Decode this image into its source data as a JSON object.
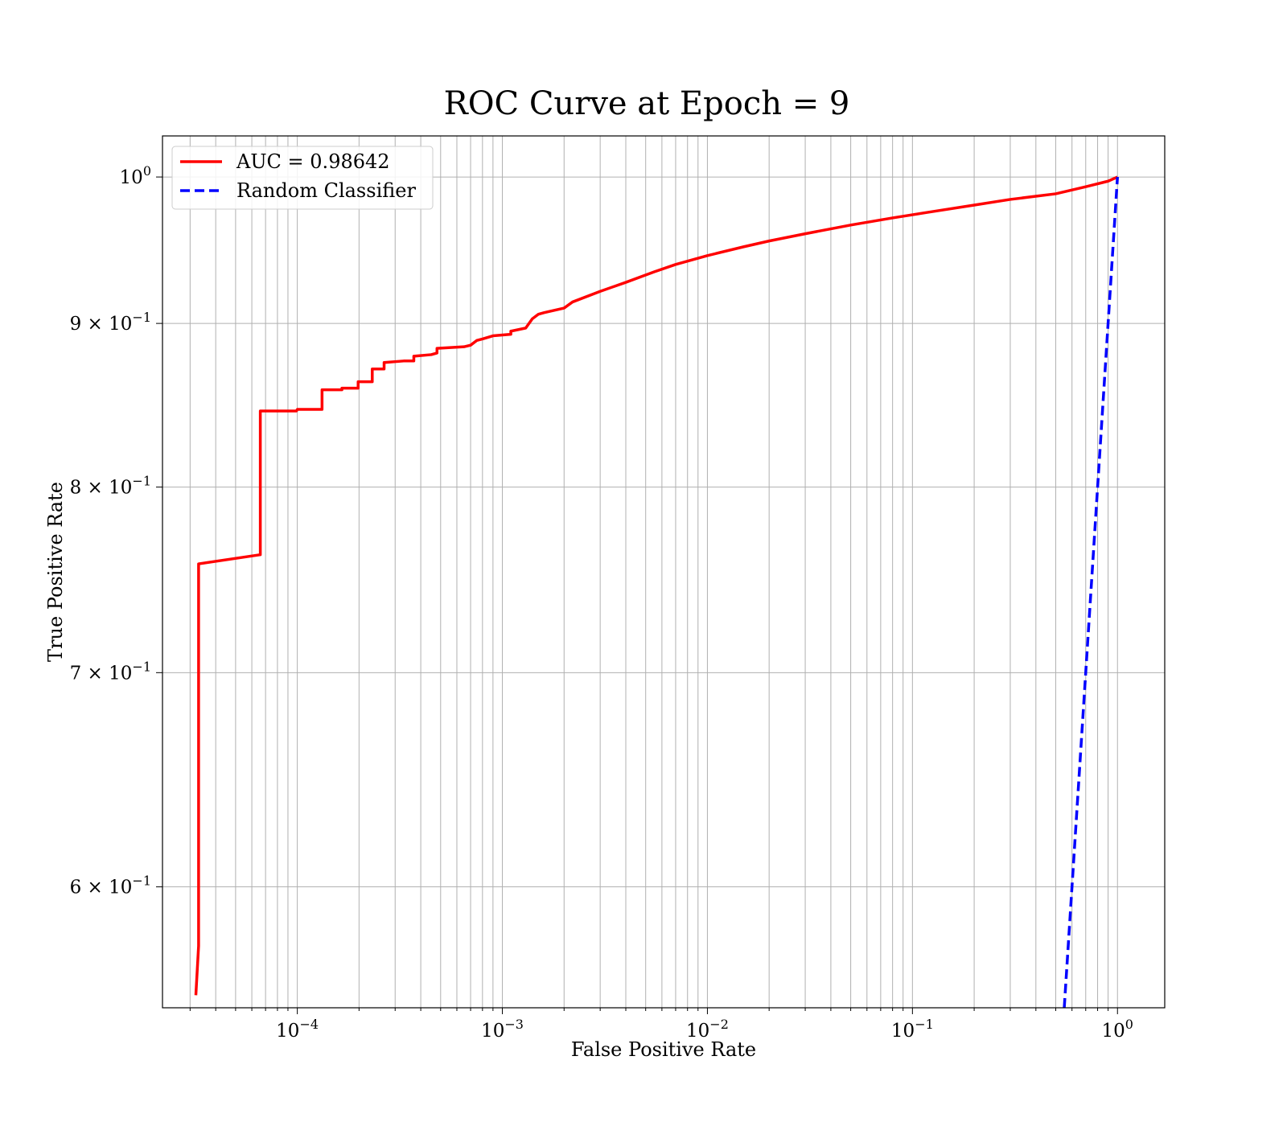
{
  "chart_data": {
    "type": "line",
    "title": "ROC Curve at Epoch = 9",
    "xlabel": "False Positive Rate",
    "ylabel": "True Positive Rate",
    "xscale": "log",
    "yscale": "log",
    "xlim": [
      2.2e-05,
      1.7
    ],
    "ylim": [
      0.55,
      1.03
    ],
    "grid": true,
    "grid_minor": true,
    "legend_placement": "top-left",
    "x_ticks": [
      {
        "value": 0.0001,
        "base": "10",
        "exp": "−4"
      },
      {
        "value": 0.001,
        "base": "10",
        "exp": "−3"
      },
      {
        "value": 0.01,
        "base": "10",
        "exp": "−2"
      },
      {
        "value": 0.1,
        "base": "10",
        "exp": "−1"
      },
      {
        "value": 1,
        "base": "10",
        "exp": "0"
      }
    ],
    "y_ticks": [
      {
        "value": 0.6,
        "base": "6 × 10",
        "exp": "−1"
      },
      {
        "value": 0.7,
        "base": "7 × 10",
        "exp": "−1"
      },
      {
        "value": 0.8,
        "base": "8 × 10",
        "exp": "−1"
      },
      {
        "value": 0.9,
        "base": "9 × 10",
        "exp": "−1"
      },
      {
        "value": 1.0,
        "base": "10",
        "exp": "0"
      }
    ],
    "series": [
      {
        "name": "AUC = 0.98642",
        "color": "#ff0000",
        "style": "solid",
        "x": [
          3.2e-05,
          3.3e-05,
          3.3e-05,
          3.3e-05,
          6.6e-05,
          6.6e-05,
          9.9e-05,
          0.0001,
          0.000132,
          0.000132,
          0.000165,
          0.000165,
          0.000198,
          0.000198,
          0.000232,
          0.000232,
          0.000265,
          0.000265,
          0.00033,
          0.00037,
          0.00037,
          0.00045,
          0.00048,
          0.00048,
          0.00065,
          0.0007,
          0.00075,
          0.0008,
          0.0009,
          0.0011,
          0.0011,
          0.0013,
          0.0014,
          0.0015,
          0.0016,
          0.002,
          0.0022,
          0.003,
          0.004,
          0.0055,
          0.007,
          0.01,
          0.015,
          0.02,
          0.03,
          0.05,
          0.08,
          0.12,
          0.2,
          0.3,
          0.5,
          0.7,
          0.9,
          1.0
        ],
        "y": [
          0.555,
          0.575,
          0.745,
          0.757,
          0.762,
          0.845,
          0.845,
          0.846,
          0.846,
          0.858,
          0.858,
          0.859,
          0.859,
          0.863,
          0.863,
          0.871,
          0.871,
          0.875,
          0.876,
          0.876,
          0.879,
          0.88,
          0.881,
          0.884,
          0.885,
          0.886,
          0.889,
          0.89,
          0.892,
          0.893,
          0.895,
          0.897,
          0.903,
          0.906,
          0.907,
          0.91,
          0.914,
          0.921,
          0.927,
          0.934,
          0.939,
          0.945,
          0.951,
          0.955,
          0.96,
          0.966,
          0.971,
          0.975,
          0.98,
          0.984,
          0.988,
          0.993,
          0.997,
          1.0
        ]
      },
      {
        "name": "Random Classifier",
        "color": "#0000ff",
        "style": "dashed",
        "x": [
          0.55,
          0.6,
          0.7,
          0.8,
          0.9,
          1.0
        ],
        "y": [
          0.55,
          0.6,
          0.7,
          0.8,
          0.9,
          1.0
        ]
      }
    ]
  }
}
